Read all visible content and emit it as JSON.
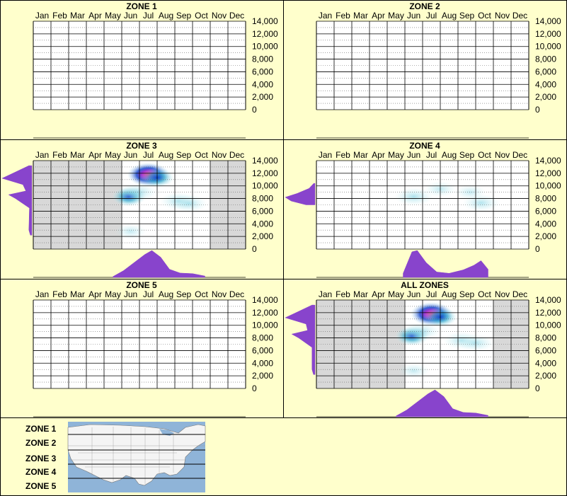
{
  "months": [
    "Jan",
    "Feb",
    "Mar",
    "Apr",
    "May",
    "Jun",
    "Jul",
    "Aug",
    "Sep",
    "Oct",
    "Nov",
    "Dec"
  ],
  "y_ticks": [
    "14,000",
    "12,000",
    "10,000",
    "8,000",
    "6,000",
    "4,000",
    "2,000",
    "0"
  ],
  "colors": {
    "background": "#ffffcc",
    "density": "#8844cc",
    "heat_low": "#ccf2f4",
    "heat_mid": "#33aacc",
    "heat_high": "#1144cc",
    "heat_peak": "#ff2277",
    "shaded": "#d8d8d8"
  },
  "legend": {
    "labels": [
      "ZONE 1",
      "ZONE 2",
      "ZONE 3",
      "ZONE 4",
      "ZONE 5"
    ],
    "map_icon": "us-map-zones-icon"
  },
  "chart_data": [
    {
      "type": "heatmap",
      "title": "ZONE 1",
      "x": "month",
      "y": "elevation",
      "ylim": [
        0,
        14000
      ],
      "has_data": false,
      "hotspots": [],
      "shaded_months": [],
      "month_density": [],
      "elev_density": []
    },
    {
      "type": "heatmap",
      "title": "ZONE 2",
      "x": "month",
      "y": "elevation",
      "ylim": [
        0,
        14000
      ],
      "has_data": false,
      "hotspots": [],
      "shaded_months": [],
      "month_density": [],
      "elev_density": []
    },
    {
      "type": "heatmap",
      "title": "ZONE 3",
      "x": "month",
      "y": "elevation",
      "ylim": [
        0,
        14000
      ],
      "has_data": true,
      "shaded_months": [
        "Jan",
        "Feb",
        "Mar",
        "Apr",
        "May",
        "Nov",
        "Dec"
      ],
      "hotspots": [
        {
          "month": 7.0,
          "elev": 11800,
          "intensity": 1.0
        },
        {
          "month": 7.5,
          "elev": 11300,
          "intensity": 0.55
        },
        {
          "month": 5.9,
          "elev": 8300,
          "intensity": 0.85
        },
        {
          "month": 6.4,
          "elev": 9000,
          "intensity": 0.35
        },
        {
          "month": 8.7,
          "elev": 7600,
          "intensity": 0.3
        },
        {
          "month": 9.3,
          "elev": 7200,
          "intensity": 0.3
        },
        {
          "month": 6.0,
          "elev": 2800,
          "intensity": 0.12
        }
      ],
      "month_density": [
        [
          5.0,
          0.03
        ],
        [
          5.6,
          0.25
        ],
        [
          6.2,
          0.55
        ],
        [
          6.8,
          0.85
        ],
        [
          7.2,
          1.0
        ],
        [
          7.7,
          0.75
        ],
        [
          8.2,
          0.3
        ],
        [
          8.8,
          0.16
        ],
        [
          9.5,
          0.14
        ],
        [
          10.2,
          0.05
        ]
      ],
      "elev_density": [
        [
          2200,
          0.05
        ],
        [
          3000,
          0.1
        ],
        [
          6500,
          0.08
        ],
        [
          8000,
          0.55
        ],
        [
          8600,
          0.78
        ],
        [
          9200,
          0.2
        ],
        [
          10200,
          0.3
        ],
        [
          11200,
          1.0
        ],
        [
          12200,
          0.55
        ],
        [
          13200,
          0.1
        ]
      ]
    },
    {
      "type": "heatmap",
      "title": "ZONE 4",
      "x": "month",
      "y": "elevation",
      "ylim": [
        0,
        14000
      ],
      "has_data": true,
      "shaded_months": [],
      "hotspots": [
        {
          "month": 6.0,
          "elev": 8300,
          "intensity": 0.35
        },
        {
          "month": 7.5,
          "elev": 9500,
          "intensity": 0.15
        },
        {
          "month": 9.8,
          "elev": 7300,
          "intensity": 0.3
        },
        {
          "month": 9.2,
          "elev": 9000,
          "intensity": 0.12
        }
      ],
      "month_density": [
        [
          5.4,
          0.15
        ],
        [
          5.9,
          0.95
        ],
        [
          6.2,
          1.0
        ],
        [
          6.7,
          0.55
        ],
        [
          7.3,
          0.2
        ],
        [
          8.0,
          0.15
        ],
        [
          8.8,
          0.28
        ],
        [
          9.4,
          0.45
        ],
        [
          9.8,
          0.62
        ],
        [
          10.2,
          0.3
        ]
      ],
      "elev_density": [
        [
          7000,
          0.3
        ],
        [
          7600,
          0.8
        ],
        [
          8200,
          1.0
        ],
        [
          8800,
          0.6
        ],
        [
          9600,
          0.2
        ],
        [
          10400,
          0.04
        ]
      ]
    },
    {
      "type": "heatmap",
      "title": "ZONE 5",
      "x": "month",
      "y": "elevation",
      "ylim": [
        0,
        14000
      ],
      "has_data": false,
      "hotspots": [],
      "shaded_months": [],
      "month_density": [],
      "elev_density": []
    },
    {
      "type": "heatmap",
      "title": "ALL ZONES",
      "x": "month",
      "y": "elevation",
      "ylim": [
        0,
        14000
      ],
      "has_data": true,
      "shaded_months": [
        "Jan",
        "Feb",
        "Mar",
        "Apr",
        "May",
        "Nov",
        "Dec"
      ],
      "hotspots": [
        {
          "month": 7.0,
          "elev": 11800,
          "intensity": 1.0
        },
        {
          "month": 7.5,
          "elev": 11300,
          "intensity": 0.55
        },
        {
          "month": 5.9,
          "elev": 8300,
          "intensity": 0.85
        },
        {
          "month": 6.4,
          "elev": 9000,
          "intensity": 0.35
        },
        {
          "month": 8.7,
          "elev": 7600,
          "intensity": 0.3
        },
        {
          "month": 9.5,
          "elev": 7200,
          "intensity": 0.3
        },
        {
          "month": 6.0,
          "elev": 2800,
          "intensity": 0.12
        }
      ],
      "month_density": [
        [
          5.0,
          0.03
        ],
        [
          5.6,
          0.25
        ],
        [
          6.2,
          0.55
        ],
        [
          6.8,
          0.85
        ],
        [
          7.2,
          1.0
        ],
        [
          7.7,
          0.75
        ],
        [
          8.2,
          0.3
        ],
        [
          8.8,
          0.16
        ],
        [
          9.5,
          0.14
        ],
        [
          10.2,
          0.05
        ]
      ],
      "elev_density": [
        [
          2200,
          0.05
        ],
        [
          3000,
          0.1
        ],
        [
          6500,
          0.1
        ],
        [
          8000,
          0.55
        ],
        [
          8600,
          0.78
        ],
        [
          9200,
          0.25
        ],
        [
          10200,
          0.3
        ],
        [
          11200,
          1.0
        ],
        [
          12200,
          0.55
        ],
        [
          13200,
          0.1
        ]
      ]
    }
  ]
}
